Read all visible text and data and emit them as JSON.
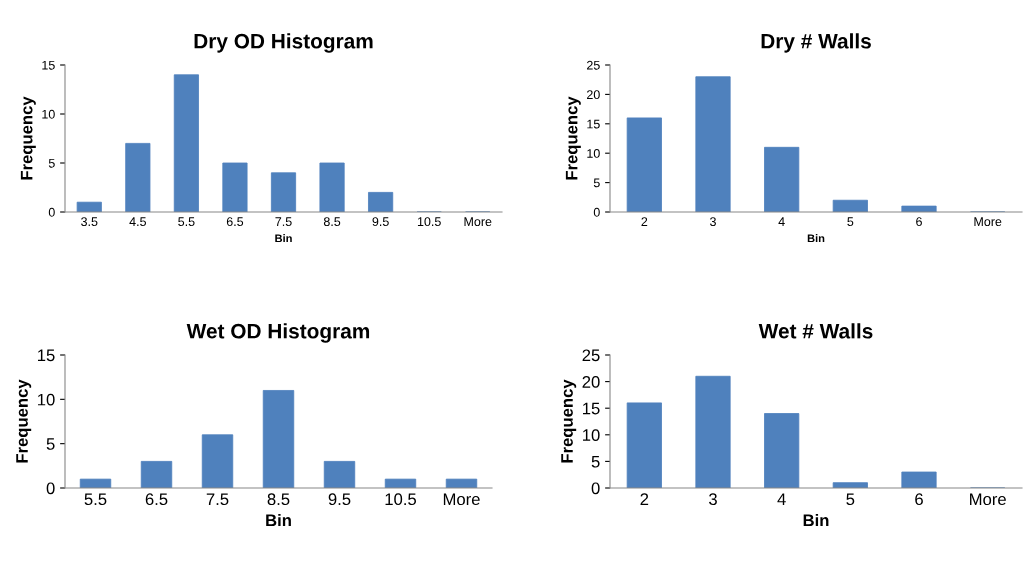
{
  "chart_data": [
    {
      "type": "bar",
      "title": "Dry OD Histogram",
      "xlabel": "Bin",
      "ylabel": "Frequency",
      "categories": [
        "3.5",
        "4.5",
        "5.5",
        "6.5",
        "7.5",
        "8.5",
        "9.5",
        "10.5",
        "More"
      ],
      "values": [
        1,
        7,
        14,
        5,
        4,
        5,
        2,
        0,
        0
      ],
      "color": "#4f81bd",
      "ylim": [
        0,
        15
      ],
      "yticks": [
        0,
        5,
        10,
        15
      ]
    },
    {
      "type": "bar",
      "title": "Dry # Walls",
      "xlabel": "Bin",
      "ylabel": "Frequency",
      "categories": [
        "2",
        "3",
        "4",
        "5",
        "6",
        "More"
      ],
      "values": [
        16,
        23,
        11,
        2,
        1,
        0
      ],
      "color": "#4f81bd",
      "ylim": [
        0,
        25
      ],
      "yticks": [
        0,
        5,
        10,
        15,
        20,
        25
      ]
    },
    {
      "type": "bar",
      "title": "Wet OD Histogram",
      "xlabel": "Bin",
      "ylabel": "Frequency",
      "categories": [
        "5.5",
        "6.5",
        "7.5",
        "8.5",
        "9.5",
        "10.5",
        "More"
      ],
      "values": [
        1,
        3,
        6,
        11,
        3,
        1,
        1
      ],
      "color": "#4f81bd",
      "ylim": [
        0,
        15
      ],
      "yticks": [
        0,
        5,
        10,
        15
      ]
    },
    {
      "type": "bar",
      "title": "Wet # Walls",
      "xlabel": "Bin",
      "ylabel": "Frequency",
      "categories": [
        "2",
        "3",
        "4",
        "5",
        "6",
        "More"
      ],
      "values": [
        16,
        21,
        14,
        1,
        3,
        0
      ],
      "color": "#4f81bd",
      "ylim": [
        0,
        25
      ],
      "yticks": [
        0,
        5,
        10,
        15,
        20,
        25
      ]
    }
  ]
}
